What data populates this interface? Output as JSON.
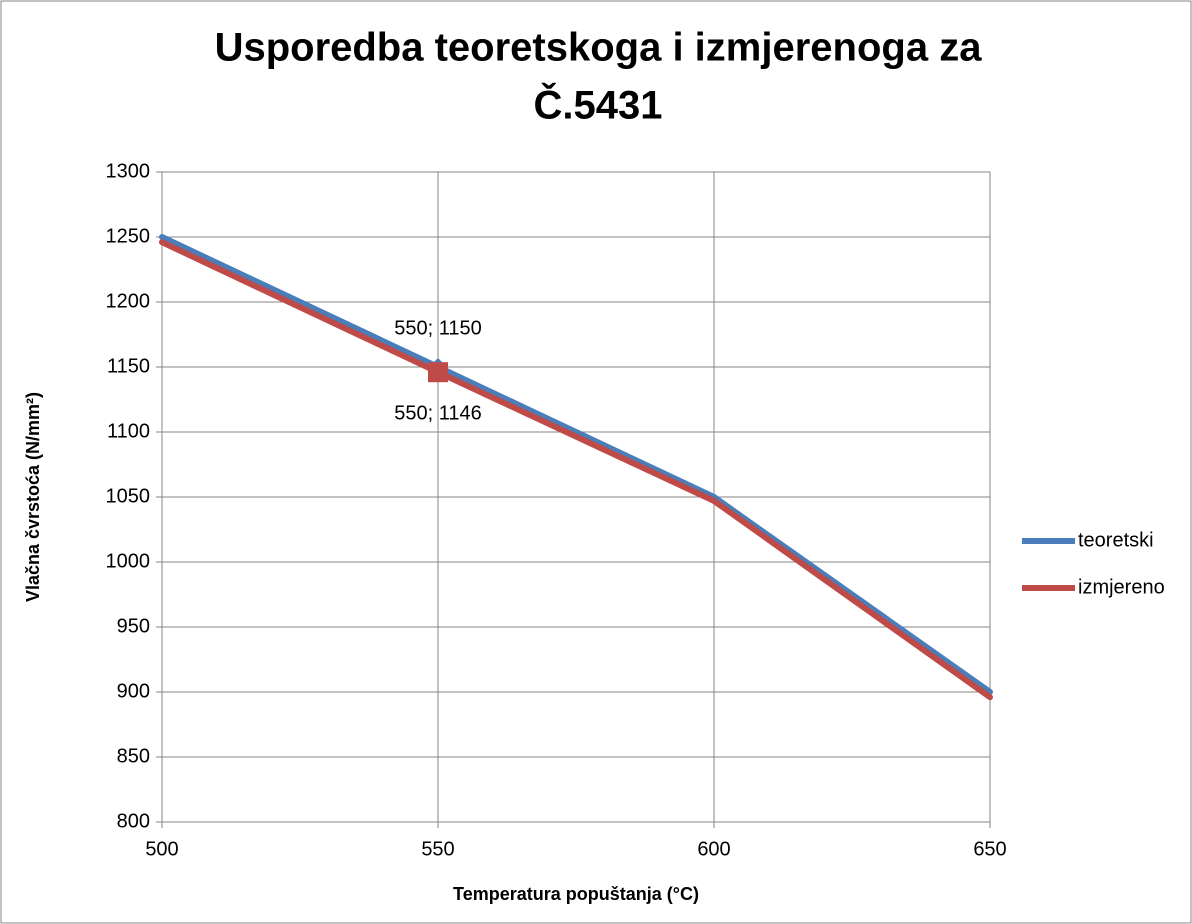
{
  "chart_data": {
    "type": "line",
    "title": [
      "Usporedba teoretskoga i izmjerenoga za",
      "Č.5431"
    ],
    "x_label": "Temperatura popuštanja (°C)",
    "y_label": "Vlačna čvrstoća (N/mm²)",
    "x": [
      500,
      550,
      600,
      650
    ],
    "series": [
      {
        "name": "teoretski",
        "color": "#4a7ebb",
        "values": [
          1250,
          1150,
          1050,
          900
        ],
        "value_labels": [
          null,
          "550; 1150",
          null,
          null
        ]
      },
      {
        "name": "izmjereno",
        "color": "#be4b48",
        "values": [
          1246,
          1146,
          1047,
          896
        ],
        "value_labels": [
          null,
          "550; 1146",
          null,
          null
        ]
      }
    ],
    "xlim": [
      500,
      650
    ],
    "xticks": [
      500,
      550,
      600,
      650
    ],
    "ylim": [
      800,
      1300
    ],
    "yticks": [
      800,
      850,
      900,
      950,
      1000,
      1050,
      1100,
      1150,
      1200,
      1250,
      1300
    ],
    "grid": true,
    "legend": "right"
  }
}
